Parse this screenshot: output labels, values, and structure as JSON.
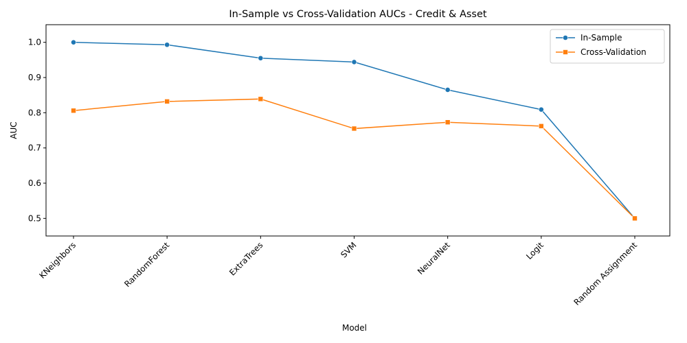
{
  "chart_data": {
    "type": "line",
    "title": "In-Sample vs Cross-Validation AUCs - Credit & Asset",
    "xlabel": "Model",
    "ylabel": "AUC",
    "categories": [
      "KNeighbors",
      "RandomForest",
      "ExtraTrees",
      "SVM",
      "NeuralNet",
      "Logit",
      "Random Assignment"
    ],
    "ylim": [
      0.45,
      1.05
    ],
    "yticks": [
      0.5,
      0.6,
      0.7,
      0.8,
      0.9,
      1.0
    ],
    "ytick_labels": [
      "0.5",
      "0.6",
      "0.7",
      "0.8",
      "0.9",
      "1.0"
    ],
    "grid": false,
    "legend_position": "top-right",
    "series": [
      {
        "name": "In-Sample",
        "color": "#1f77b4",
        "marker": "circle",
        "values": [
          1.0,
          0.993,
          0.955,
          0.944,
          0.865,
          0.809,
          0.5
        ]
      },
      {
        "name": "Cross-Validation",
        "color": "#ff7f0e",
        "marker": "square",
        "values": [
          0.806,
          0.832,
          0.839,
          0.755,
          0.773,
          0.762,
          0.5
        ]
      }
    ]
  }
}
